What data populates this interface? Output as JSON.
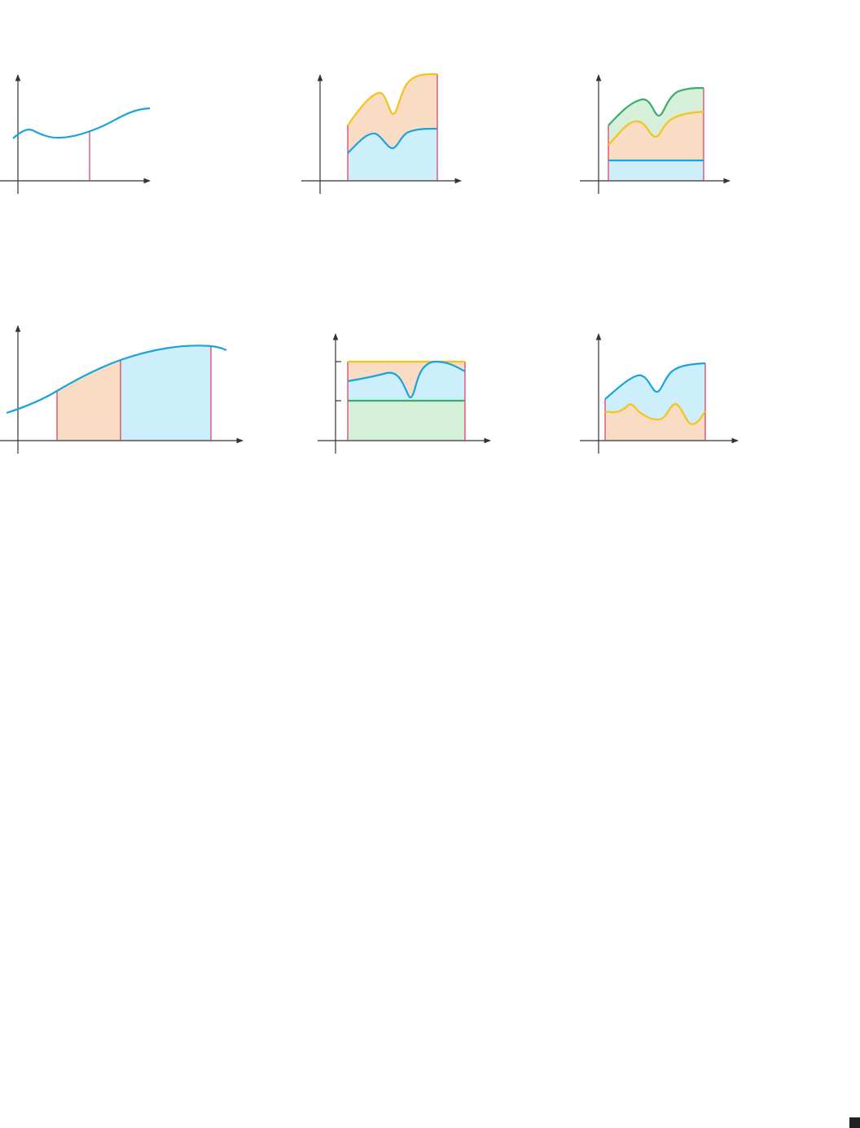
{
  "colors": {
    "blue_curve": "#1aa3dd",
    "blue_fill": "#cdeefb",
    "orange_fill": "#f8dcc3",
    "yellow_curve": "#f6c31a",
    "green_curve": "#3aae6e",
    "green_fill": "#d5efd8",
    "red_line": "#d8345a",
    "axis": "#333333",
    "corner_marker": "#222222"
  },
  "panels": [
    {
      "name": "panel-curve-with-vertical-line",
      "fills": [],
      "curves": [
        "blue"
      ],
      "vertical_lines": 1
    },
    {
      "name": "panel-two-stacked-areas",
      "fills": [
        "blue",
        "orange"
      ],
      "curves": [
        "blue",
        "yellow"
      ]
    },
    {
      "name": "panel-three-stacked-areas",
      "fills": [
        "blue",
        "orange",
        "green"
      ],
      "curves": [
        "blue",
        "yellow",
        "green"
      ]
    },
    {
      "name": "panel-two-adjacent-regions",
      "fills": [
        "orange",
        "blue"
      ],
      "curves": [
        "blue"
      ],
      "vertical_lines": 3
    },
    {
      "name": "panel-rectangle-bands",
      "fills": [
        "green",
        "blue",
        "orange"
      ],
      "curves": [
        "blue",
        "green",
        "yellow"
      ],
      "y_ticks": 2
    },
    {
      "name": "panel-area-between-curves",
      "fills": [
        "orange",
        "blue"
      ],
      "curves": [
        "blue",
        "yellow"
      ]
    }
  ],
  "corner_marker_icon": "filled-square"
}
